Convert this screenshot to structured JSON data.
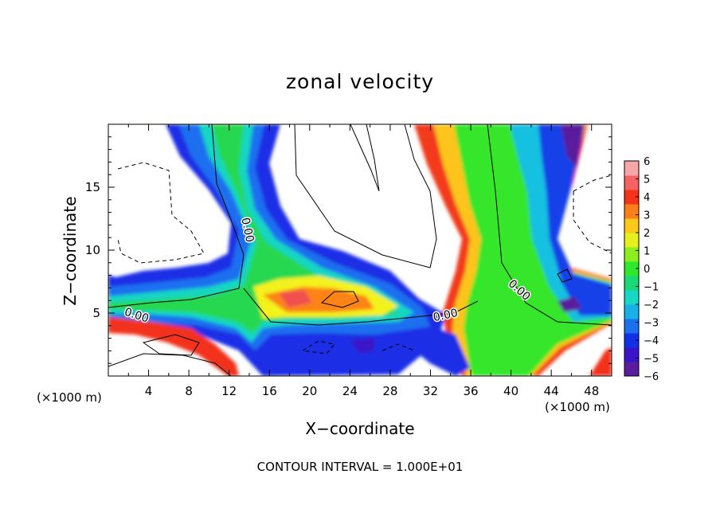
{
  "chart_data": {
    "type": "heatmap",
    "title": "zonal velocity",
    "xlabel": "X−coordinate",
    "ylabel": "Z−coordinate",
    "x_unit": "(×1000 m)",
    "z_unit": "(×1000 m)",
    "xlim": [
      0,
      50
    ],
    "ylim": [
      0,
      20
    ],
    "x_ticks": [
      4,
      8,
      12,
      16,
      20,
      24,
      28,
      32,
      36,
      40,
      44,
      48
    ],
    "x_tick_labels": [
      "4",
      "8",
      "12",
      "16",
      "20",
      "24",
      "28",
      "32",
      "36",
      "40",
      "44",
      "48"
    ],
    "y_ticks": [
      5,
      10,
      15
    ],
    "y_tick_labels": [
      "5",
      "10",
      "15"
    ],
    "colorbar": {
      "min": -6,
      "max": 6,
      "tick_values": [
        6,
        5,
        4,
        3,
        2,
        1,
        0,
        -1,
        -2,
        -3,
        -4,
        -5,
        -6
      ],
      "tick_labels": [
        "6",
        "5",
        "4",
        "3",
        "2",
        "1",
        "0",
        "−1",
        "−2",
        "−3",
        "−4",
        "−5",
        "−6"
      ],
      "colors": [
        "#5a1b9c",
        "#3a14c8",
        "#1330e6",
        "#1a70ee",
        "#18b0e8",
        "#16d8c4",
        "#18d878",
        "#2ee82c",
        "#8cee1c",
        "#e6f01c",
        "#fcc81a",
        "#fc7e16",
        "#f6321a",
        "#f66262",
        "#f6a6a6"
      ]
    },
    "contour_labels": [
      {
        "text": "0.00",
        "x": 2.8,
        "z": 4.8,
        "angle": 18
      },
      {
        "text": "0.00",
        "x": 13.8,
        "z": 11.6,
        "angle": 78
      },
      {
        "text": "0.00",
        "x": 33.5,
        "z": 4.8,
        "angle": -12
      },
      {
        "text": "0.00",
        "x": 40.8,
        "z": 6.8,
        "angle": 42
      }
    ],
    "contour_interval_text": "CONTOUR INTERVAL = 1.000E+01"
  }
}
